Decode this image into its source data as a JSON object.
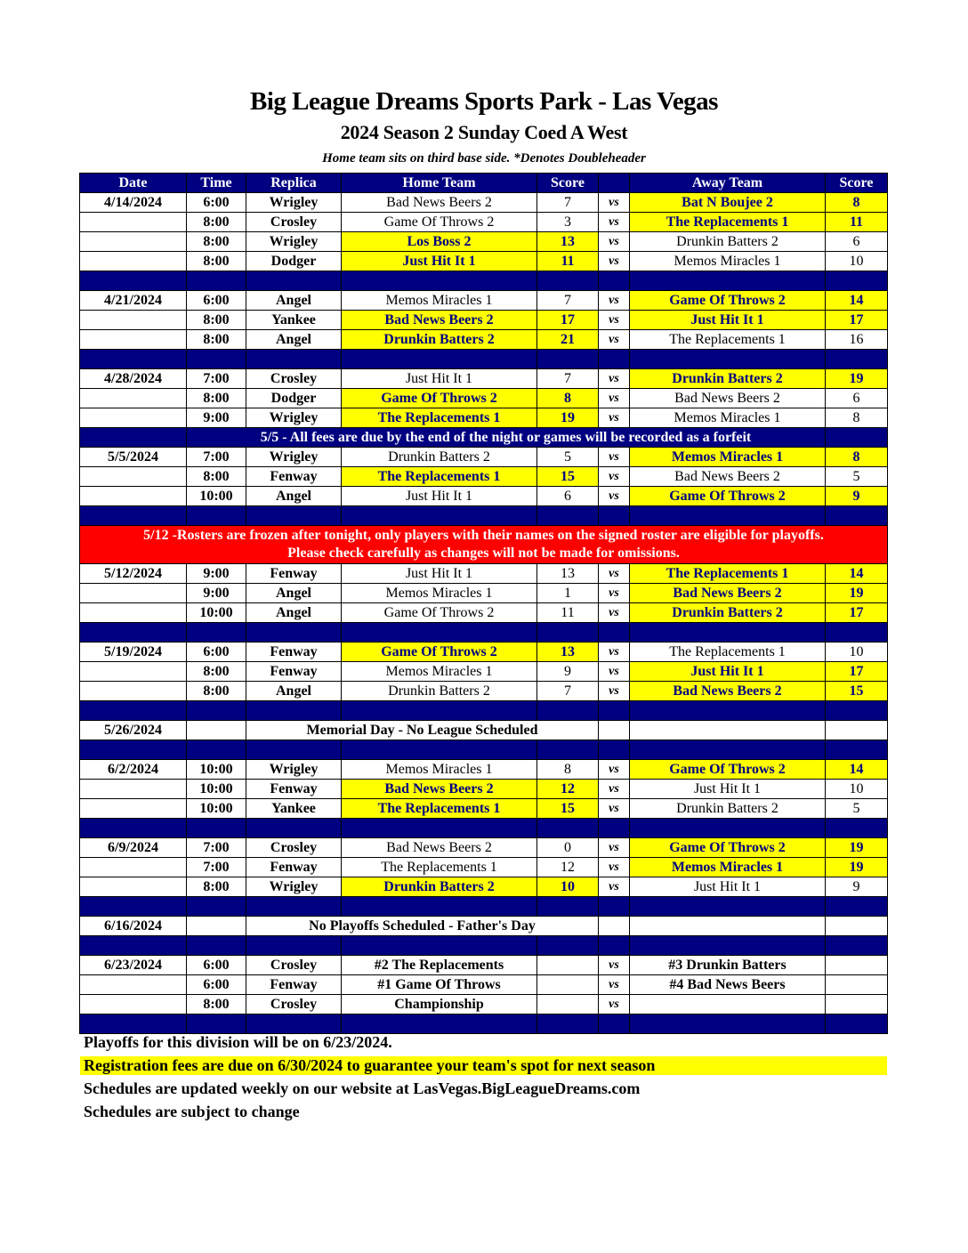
{
  "title": "Big League Dreams Sports Park - Las Vegas",
  "subtitle": "2024 Season 2 Sunday Coed A West",
  "top_note": "Home team sits on third base side.  *Denotes Doubleheader",
  "colors": {
    "header": "#000080",
    "winner": "#ffff00",
    "alert": "#ff0000"
  },
  "headers": [
    "Date",
    "Time",
    "Replica",
    "Home Team",
    "Score",
    "",
    "Away Team",
    "Score"
  ],
  "rows": [
    {
      "type": "game",
      "date": "4/14/2024",
      "time": "6:00",
      "field": "Wrigley",
      "home": "Bad News Beers 2",
      "hs": "7",
      "vs": "vs",
      "away": "Bat N Boujee 2",
      "as": "8",
      "winner": "away"
    },
    {
      "type": "game",
      "date": "",
      "time": "8:00",
      "field": "Crosley",
      "home": "Game Of Throws 2",
      "hs": "3",
      "vs": "vs",
      "away": "The Replacements 1",
      "as": "11",
      "winner": "away"
    },
    {
      "type": "game",
      "date": "",
      "time": "8:00",
      "field": "Wrigley",
      "home": "Los Boss 2",
      "hs": "13",
      "vs": "vs",
      "away": "Drunkin Batters 2",
      "as": "6",
      "winner": "home"
    },
    {
      "type": "game",
      "date": "",
      "time": "8:00",
      "field": "Dodger",
      "home": "Just Hit It 1",
      "hs": "11",
      "vs": "vs",
      "away": "Memos Miracles 1",
      "as": "10",
      "winner": "home"
    },
    {
      "type": "spacer"
    },
    {
      "type": "game",
      "date": "4/21/2024",
      "time": "6:00",
      "field": "Angel",
      "home": "Memos Miracles 1",
      "hs": "7",
      "vs": "vs",
      "away": "Game Of Throws 2",
      "as": "14",
      "winner": "away"
    },
    {
      "type": "game",
      "date": "",
      "time": "8:00",
      "field": "Yankee",
      "home": "Bad News Beers 2",
      "hs": "17",
      "vs": "vs",
      "away": "Just Hit It 1",
      "as": "17",
      "winner": "both"
    },
    {
      "type": "game",
      "date": "",
      "time": "8:00",
      "field": "Angel",
      "home": "Drunkin Batters 2",
      "hs": "21",
      "vs": "vs",
      "away": "The Replacements 1",
      "as": "16",
      "winner": "home"
    },
    {
      "type": "spacer"
    },
    {
      "type": "game",
      "date": "4/28/2024",
      "time": "7:00",
      "field": "Crosley",
      "home": "Just Hit It 1",
      "hs": "7",
      "vs": "vs",
      "away": "Drunkin Batters 2",
      "as": "19",
      "winner": "away"
    },
    {
      "type": "game",
      "date": "",
      "time": "8:00",
      "field": "Dodger",
      "home": "Game Of Throws 2",
      "hs": "8",
      "vs": "vs",
      "away": "Bad News Beers 2",
      "as": "6",
      "winner": "home"
    },
    {
      "type": "game",
      "date": "",
      "time": "9:00",
      "field": "Wrigley",
      "home": "The Replacements 1",
      "hs": "19",
      "vs": "vs",
      "away": "Memos Miracles 1",
      "as": "8",
      "winner": "home"
    },
    {
      "type": "banner",
      "text": "5/5 - All fees are due by the end of the night or games will be recorded as a forfeit"
    },
    {
      "type": "game",
      "date": "5/5/2024",
      "time": "7:00",
      "field": "Wrigley",
      "home": "Drunkin Batters 2",
      "hs": "5",
      "vs": "vs",
      "away": "Memos Miracles 1",
      "as": "8",
      "winner": "away"
    },
    {
      "type": "game",
      "date": "",
      "time": "8:00",
      "field": "Fenway",
      "home": "The Replacements 1",
      "hs": "15",
      "vs": "vs",
      "away": "Bad News Beers 2",
      "as": "5",
      "winner": "home"
    },
    {
      "type": "game",
      "date": "",
      "time": "10:00",
      "field": "Angel",
      "home": "Just Hit It 1",
      "hs": "6",
      "vs": "vs",
      "away": "Game Of Throws 2",
      "as": "9",
      "winner": "away"
    },
    {
      "type": "spacer"
    },
    {
      "type": "red",
      "line1": "5/12 -Rosters are frozen after tonight, only players with their names on the signed roster are eligible for playoffs.",
      "line2": "Please check carefully as changes will not be made for omissions."
    },
    {
      "type": "game",
      "date": "5/12/2024",
      "time": "9:00",
      "field": "Fenway",
      "home": "Just Hit It 1",
      "hs": "13",
      "vs": "vs",
      "away": "The Replacements 1",
      "as": "14",
      "winner": "away"
    },
    {
      "type": "game",
      "date": "",
      "time": "9:00",
      "field": "Angel",
      "home": "Memos Miracles 1",
      "hs": "1",
      "vs": "vs",
      "away": "Bad News Beers 2",
      "as": "19",
      "winner": "away"
    },
    {
      "type": "game",
      "date": "",
      "time": "10:00",
      "field": "Angel",
      "home": "Game Of Throws 2",
      "hs": "11",
      "vs": "vs",
      "away": "Drunkin Batters 2",
      "as": "17",
      "winner": "away"
    },
    {
      "type": "spacer"
    },
    {
      "type": "game",
      "date": "5/19/2024",
      "time": "6:00",
      "field": "Fenway",
      "home": "Game Of Throws 2",
      "hs": "13",
      "vs": "vs",
      "away": "The Replacements 1",
      "as": "10",
      "winner": "home"
    },
    {
      "type": "game",
      "date": "",
      "time": "8:00",
      "field": "Fenway",
      "home": "Memos Miracles 1",
      "hs": "9",
      "vs": "vs",
      "away": "Just Hit It 1",
      "as": "17",
      "winner": "away"
    },
    {
      "type": "game",
      "date": "",
      "time": "8:00",
      "field": "Angel",
      "home": "Drunkin Batters 2",
      "hs": "7",
      "vs": "vs",
      "away": "Bad News Beers 2",
      "as": "15",
      "winner": "away"
    },
    {
      "type": "spacer"
    },
    {
      "type": "note",
      "date": "5/26/2024",
      "text": "Memorial Day - No League Scheduled"
    },
    {
      "type": "spacer"
    },
    {
      "type": "game",
      "date": "6/2/2024",
      "time": "10:00",
      "field": "Wrigley",
      "home": "Memos Miracles 1",
      "hs": "8",
      "vs": "vs",
      "away": "Game Of Throws 2",
      "as": "14",
      "winner": "away"
    },
    {
      "type": "game",
      "date": "",
      "time": "10:00",
      "field": "Fenway",
      "home": "Bad News Beers 2",
      "hs": "12",
      "vs": "vs",
      "away": "Just Hit It 1",
      "as": "10",
      "winner": "home"
    },
    {
      "type": "game",
      "date": "",
      "time": "10:00",
      "field": "Yankee",
      "home": "The Replacements 1",
      "hs": "15",
      "vs": "vs",
      "away": "Drunkin Batters 2",
      "as": "5",
      "winner": "home"
    },
    {
      "type": "spacer"
    },
    {
      "type": "game",
      "date": "6/9/2024",
      "time": "7:00",
      "field": "Crosley",
      "home": "Bad News Beers 2",
      "hs": "0",
      "vs": "vs",
      "away": "Game Of Throws 2",
      "as": "19",
      "winner": "away"
    },
    {
      "type": "game",
      "date": "",
      "time": "7:00",
      "field": "Fenway",
      "home": "The Replacements 1",
      "hs": "12",
      "vs": "vs",
      "away": "Memos Miracles 1",
      "as": "19",
      "winner": "away"
    },
    {
      "type": "game",
      "date": "",
      "time": "8:00",
      "field": "Wrigley",
      "home": "Drunkin Batters 2",
      "hs": "10",
      "vs": "vs",
      "away": "Just Hit It 1",
      "as": "9",
      "winner": "home"
    },
    {
      "type": "spacer"
    },
    {
      "type": "note",
      "date": "6/16/2024",
      "text": "No Playoffs Scheduled - Father's Day"
    },
    {
      "type": "spacer"
    },
    {
      "type": "game",
      "playoff": true,
      "date": "6/23/2024",
      "time": "6:00",
      "field": "Crosley",
      "home": "#2 The Replacements",
      "hs": "",
      "vs": "vs",
      "away": "#3 Drunkin Batters",
      "as": "",
      "winner": ""
    },
    {
      "type": "game",
      "playoff": true,
      "date": "",
      "time": "6:00",
      "field": "Fenway",
      "home": "#1 Game Of Throws",
      "hs": "",
      "vs": "vs",
      "away": "#4 Bad News Beers",
      "as": "",
      "winner": ""
    },
    {
      "type": "game",
      "playoff": true,
      "date": "",
      "time": "8:00",
      "field": "Crosley",
      "home": "Championship",
      "hs": "",
      "vs": "vs",
      "away": "",
      "as": "",
      "winner": ""
    },
    {
      "type": "spacer"
    }
  ],
  "footer": [
    "Playoffs for this division will be on 6/23/2024.",
    "Registration fees are due on 6/30/2024 to guarantee your team's spot for next season",
    "Schedules are updated weekly on our website at LasVegas.BigLeagueDreams.com",
    "Schedules are subject to change"
  ]
}
